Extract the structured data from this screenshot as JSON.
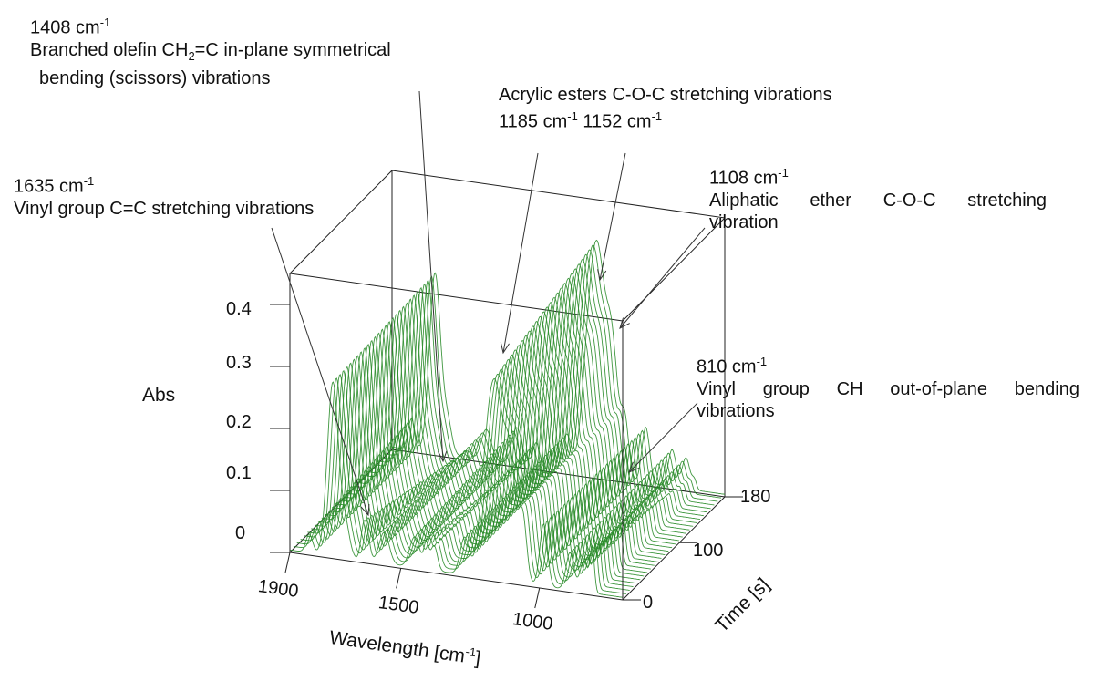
{
  "chart_data": {
    "type": "waterfall-3d-line",
    "axes": {
      "x": {
        "label_text": "Wavelength [cm",
        "label_sup": "-1",
        "label_end": "]",
        "ticks": [
          "1900",
          "1500",
          "1000"
        ],
        "tick_values": [
          1900,
          1500,
          1000
        ],
        "range": [
          1900,
          700
        ]
      },
      "y": {
        "label": "Time [s]",
        "ticks": [
          "0",
          "100",
          "180"
        ],
        "tick_values": [
          0,
          100,
          180
        ],
        "range": [
          0,
          180
        ]
      },
      "z": {
        "label": "Abs",
        "ticks": [
          "0",
          "0.1",
          "0.2",
          "0.3",
          "0.4"
        ],
        "tick_values": [
          0,
          0.1,
          0.2,
          0.3,
          0.4
        ],
        "range": [
          0,
          0.45
        ]
      }
    },
    "series_color": "#2a8c2a",
    "series_count": 30,
    "peaks": [
      {
        "pos": 1830,
        "width": 12,
        "amp0": 0.03,
        "amp1": 0.05
      },
      {
        "pos": 1745,
        "width": 20,
        "amp0": 0.28,
        "amp1": 0.29
      },
      {
        "pos": 1700,
        "width": 16,
        "amp0": 0.05,
        "amp1": 0.05
      },
      {
        "pos": 1635,
        "width": 10,
        "amp0": 0.05,
        "amp1": 0.008
      },
      {
        "pos": 1620,
        "width": 10,
        "amp0": 0.035,
        "amp1": 0.006
      },
      {
        "pos": 1560,
        "width": 18,
        "amp0": 0.05,
        "amp1": 0.05
      },
      {
        "pos": 1450,
        "width": 18,
        "amp0": 0.05,
        "amp1": 0.06
      },
      {
        "pos": 1408,
        "width": 9,
        "amp0": 0.04,
        "amp1": 0.006
      },
      {
        "pos": 1380,
        "width": 12,
        "amp0": 0.04,
        "amp1": 0.04
      },
      {
        "pos": 1270,
        "width": 16,
        "amp0": 0.06,
        "amp1": 0.06
      },
      {
        "pos": 1185,
        "width": 26,
        "amp0": 0.21,
        "amp1": 0.24
      },
      {
        "pos": 1152,
        "width": 22,
        "amp0": 0.19,
        "amp1": 0.23
      },
      {
        "pos": 1108,
        "width": 22,
        "amp0": 0.2,
        "amp1": 0.22
      },
      {
        "pos": 1060,
        "width": 14,
        "amp0": 0.1,
        "amp1": 0.09
      },
      {
        "pos": 985,
        "width": 14,
        "amp0": 0.1,
        "amp1": 0.09
      },
      {
        "pos": 890,
        "width": 14,
        "amp0": 0.06,
        "amp1": 0.06
      },
      {
        "pos": 840,
        "width": 14,
        "amp0": 0.05,
        "amp1": 0.05
      },
      {
        "pos": 810,
        "width": 8,
        "amp0": 0.07,
        "amp1": 0.015
      }
    ]
  },
  "annotations": [
    {
      "id": "a1408",
      "wn": "1408 cm",
      "sup": "-1",
      "line1": "Branched olefin CH",
      "sub": "2",
      "line1b": "=C in-plane symmetrical",
      "line2": "bending (scissors) vibrations"
    },
    {
      "id": "a1635",
      "wn": "1635 cm",
      "sup": "-1",
      "line1": "Vinyl group C=C stretching vibrations"
    },
    {
      "id": "aester",
      "title": "Acrylic esters C-O-C stretching vibrations",
      "wn1": "1185 cm",
      "sup1": "-1",
      "wn2": "1152 cm",
      "sup2": "-1"
    },
    {
      "id": "a1108",
      "wn": "1108 cm",
      "sup": "-1",
      "line1": "Aliphatic ether C-O-C stretching",
      "line2": "vibration"
    },
    {
      "id": "a810",
      "wn": "810 cm",
      "sup": "-1",
      "line1": "Vinyl group CH out-of-plane bending",
      "line2": "vibrations"
    }
  ]
}
